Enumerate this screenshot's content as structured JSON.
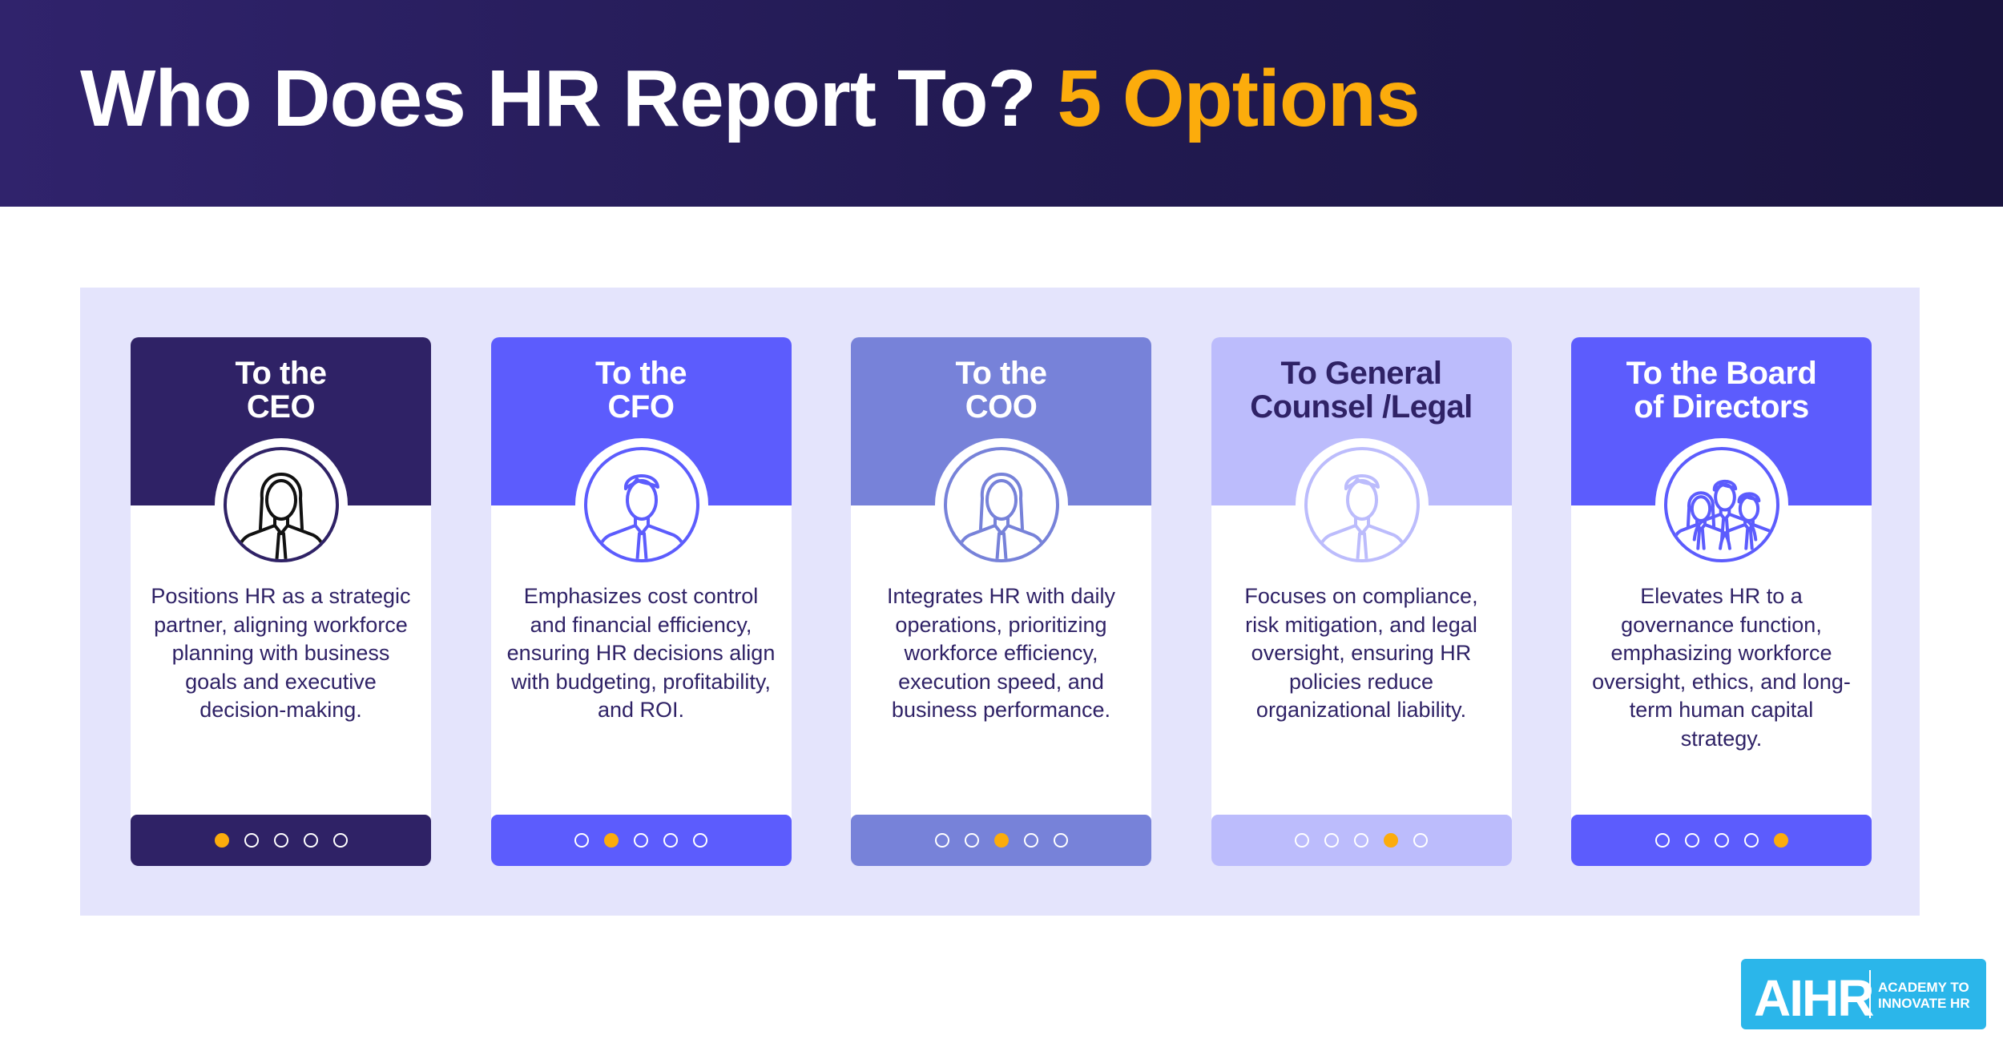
{
  "header": {
    "title_main": "Who Does HR Report To?",
    "title_accent": "5 Options",
    "accent_color": "#fcac0c"
  },
  "cards": [
    {
      "title_line1": "To the",
      "title_line2": "CEO",
      "description": "Positions HR as a strategic partner, aligning workforce planning with business goals and executive decision-making.",
      "icon": "businesswoman-icon",
      "color": "#2f2266",
      "title_color": "#ffffff",
      "icon_color": "#111111",
      "ring_color": "#2f2266",
      "active_dot": 1
    },
    {
      "title_line1": "To the",
      "title_line2": "CFO",
      "description": "Emphasizes cost control and financial efficiency, ensuring HR decisions align with budgeting, profitability, and ROI.",
      "icon": "businessman-icon",
      "color": "#5c5cfd",
      "title_color": "#ffffff",
      "icon_color": "#5c5cfd",
      "ring_color": "#5c5cfd",
      "active_dot": 2
    },
    {
      "title_line1": "To the",
      "title_line2": "COO",
      "description": "Integrates HR with daily operations, prioritizing workforce efficiency, execution speed, and business performance.",
      "icon": "woman-icon",
      "color": "#7782d9",
      "title_color": "#ffffff",
      "icon_color": "#7782d9",
      "ring_color": "#7782d9",
      "active_dot": 3
    },
    {
      "title_line1": "To General",
      "title_line2": "Counsel /Legal",
      "description": "Focuses on compliance, risk mitigation, and legal oversight, ensuring HR policies reduce organizational liability.",
      "icon": "man-icon",
      "color": "#bcbcfc",
      "title_color": "#2f2266",
      "icon_color": "#bcbcfc",
      "ring_color": "#bcbcfc",
      "active_dot": 4
    },
    {
      "title_line1": "To the Board",
      "title_line2": "of Directors",
      "description": "Elevates HR to a governance function, emphasizing workforce oversight, ethics, and long-term human capital strategy.",
      "icon": "group-icon",
      "color": "#5c5cfd",
      "title_color": "#ffffff",
      "icon_color": "#5c5cfd",
      "ring_color": "#5c5cfd",
      "active_dot": 5
    }
  ],
  "logo": {
    "name": "AIHR",
    "tagline_line1": "ACADEMY TO",
    "tagline_line2": "INNOVATE HR",
    "color": "#2bb6ea"
  }
}
